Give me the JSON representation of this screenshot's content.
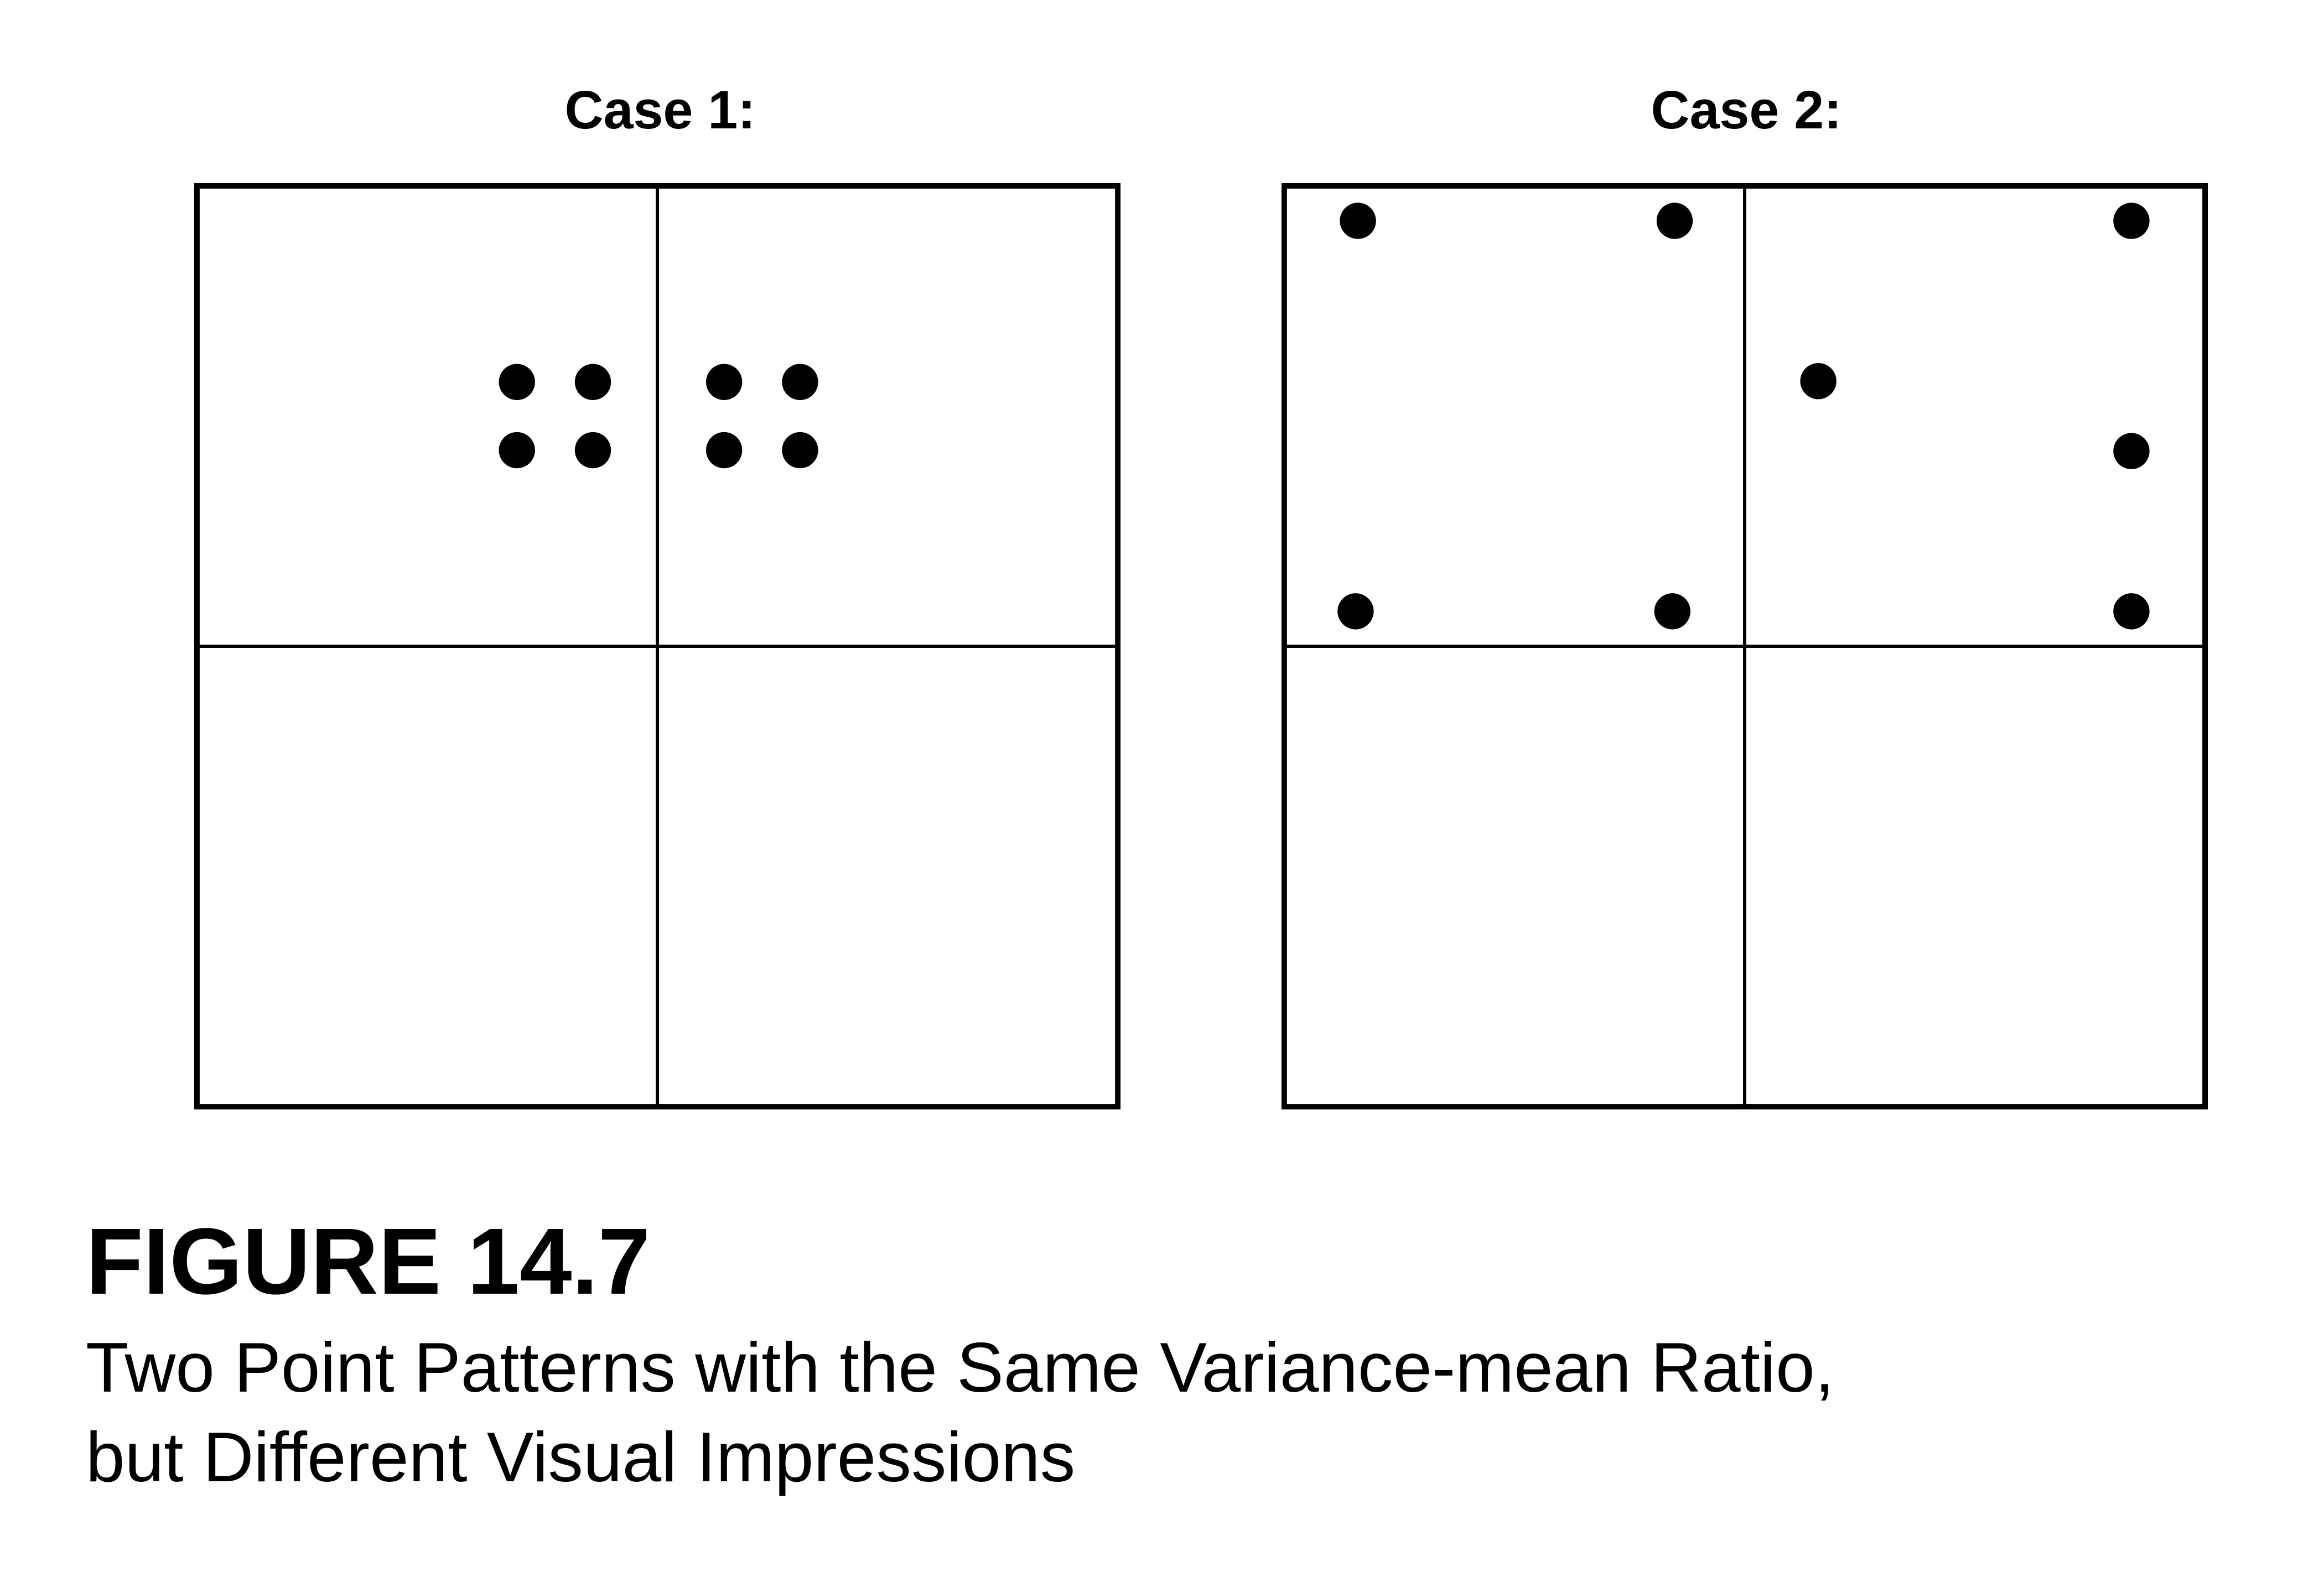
{
  "panels": [
    {
      "title": "Case 1:",
      "grid": "2x2 quadrats",
      "points": [
        {
          "x": 0.695,
          "y": 0.426
        },
        {
          "x": 0.86,
          "y": 0.426
        },
        {
          "x": 1.145,
          "y": 0.426
        },
        {
          "x": 1.31,
          "y": 0.426
        },
        {
          "x": 0.695,
          "y": 0.574
        },
        {
          "x": 0.86,
          "y": 0.574
        },
        {
          "x": 1.145,
          "y": 0.574
        },
        {
          "x": 1.31,
          "y": 0.574
        }
      ]
    },
    {
      "title": "Case 2:",
      "grid": "2x2 quadrats",
      "points": [
        {
          "x": 0.16,
          "y": 0.076
        },
        {
          "x": 0.848,
          "y": 0.076
        },
        {
          "x": 1.84,
          "y": 0.076
        },
        {
          "x": 1.16,
          "y": 0.424
        },
        {
          "x": 1.84,
          "y": 0.576
        },
        {
          "x": 0.155,
          "y": 0.924
        },
        {
          "x": 0.843,
          "y": 0.924
        },
        {
          "x": 1.84,
          "y": 0.924
        }
      ]
    }
  ],
  "figure_label": "FIGURE 14.7",
  "caption": {
    "line1": "Two Point Patterns with the Same Variance-mean Ratio,",
    "line2": "but Different Visual Impressions"
  },
  "colors": {
    "ink": "#000000",
    "background": "#ffffff"
  }
}
